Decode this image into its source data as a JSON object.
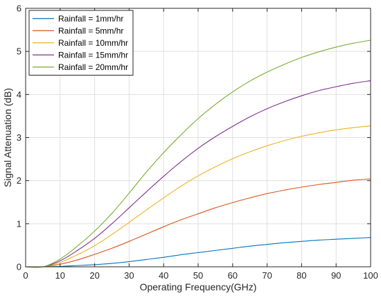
{
  "chart_data": {
    "type": "line",
    "title": "",
    "xlabel": "Operating Frequency(GHz)",
    "ylabel": "Signal Attenuation (dB)",
    "xlim": [
      0,
      100
    ],
    "ylim": [
      0,
      6
    ],
    "xticks": [
      0,
      10,
      20,
      30,
      40,
      50,
      60,
      70,
      80,
      90,
      100
    ],
    "yticks": [
      0,
      1,
      2,
      3,
      4,
      5,
      6
    ],
    "grid": true,
    "legend_position": "top-left",
    "x": [
      0,
      5,
      10,
      15,
      20,
      25,
      30,
      35,
      40,
      45,
      50,
      55,
      60,
      65,
      70,
      75,
      80,
      85,
      90,
      95,
      100
    ],
    "series": [
      {
        "name": "Rainfall = 1mm/hr",
        "color": "#0072BD",
        "values": [
          0,
          0,
          0.01,
          0.03,
          0.05,
          0.08,
          0.12,
          0.17,
          0.22,
          0.28,
          0.33,
          0.38,
          0.43,
          0.48,
          0.52,
          0.56,
          0.59,
          0.62,
          0.64,
          0.66,
          0.68
        ]
      },
      {
        "name": "Rainfall = 5mm/hr",
        "color": "#D95319",
        "values": [
          0,
          0,
          0.06,
          0.16,
          0.29,
          0.43,
          0.59,
          0.76,
          0.93,
          1.09,
          1.23,
          1.37,
          1.49,
          1.6,
          1.7,
          1.78,
          1.85,
          1.91,
          1.96,
          2.01,
          2.04
        ]
      },
      {
        "name": "Rainfall = 10mm/hr",
        "color": "#EDB120",
        "values": [
          0,
          0,
          0.1,
          0.28,
          0.49,
          0.75,
          1.03,
          1.32,
          1.6,
          1.87,
          2.11,
          2.32,
          2.51,
          2.67,
          2.81,
          2.93,
          3.03,
          3.11,
          3.18,
          3.23,
          3.27
        ]
      },
      {
        "name": "Rainfall = 15mm/hr",
        "color": "#7E2F8E",
        "values": [
          0,
          0,
          0.14,
          0.38,
          0.66,
          1.0,
          1.37,
          1.74,
          2.1,
          2.44,
          2.75,
          3.02,
          3.26,
          3.48,
          3.67,
          3.83,
          3.97,
          4.09,
          4.18,
          4.26,
          4.32
        ]
      },
      {
        "name": "Rainfall = 20mm/hr",
        "color": "#77AC30",
        "values": [
          0,
          0,
          0.18,
          0.48,
          0.83,
          1.24,
          1.71,
          2.2,
          2.65,
          3.06,
          3.44,
          3.77,
          4.06,
          4.31,
          4.52,
          4.7,
          4.86,
          4.99,
          5.1,
          5.19,
          5.26
        ]
      }
    ]
  }
}
